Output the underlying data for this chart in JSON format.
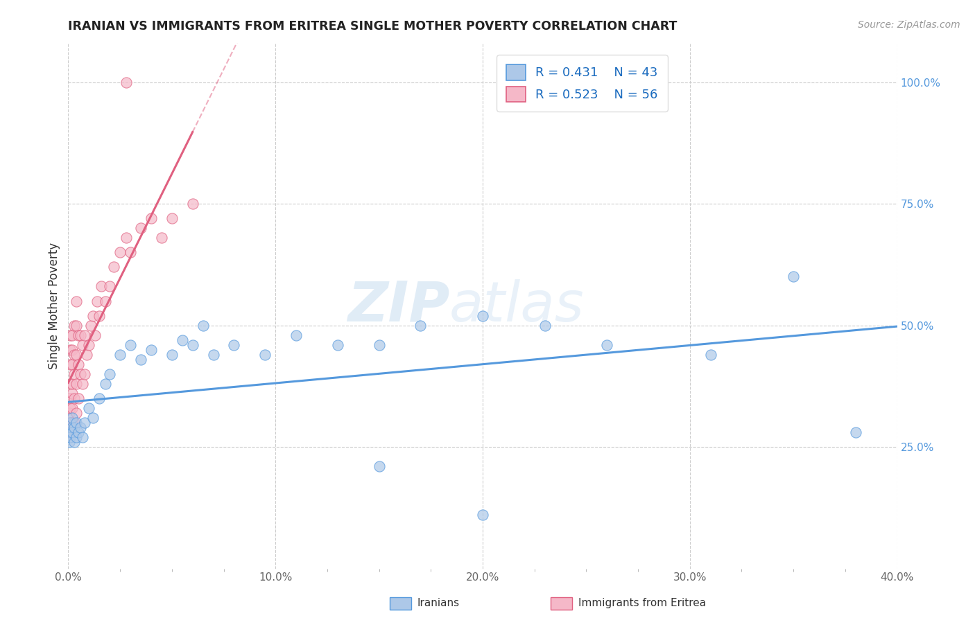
{
  "title": "IRANIAN VS IMMIGRANTS FROM ERITREA SINGLE MOTHER POVERTY CORRELATION CHART",
  "source": "Source: ZipAtlas.com",
  "xlabel_iranians": "Iranians",
  "xlabel_eritrea": "Immigrants from Eritrea",
  "ylabel": "Single Mother Poverty",
  "xlim": [
    0.0,
    0.4
  ],
  "ylim": [
    0.0,
    1.08
  ],
  "xticks": [
    0.0,
    0.1,
    0.2,
    0.3,
    0.4
  ],
  "xtick_labels": [
    "0.0%",
    "10.0%",
    "20.0%",
    "30.0%",
    "40.0%"
  ],
  "yticks": [
    0.25,
    0.5,
    0.75,
    1.0
  ],
  "ytick_labels": [
    "25.0%",
    "50.0%",
    "75.0%",
    "100.0%"
  ],
  "legend_r_iranian": "R = 0.431",
  "legend_n_iranian": "N = 43",
  "legend_r_eritrea": "R = 0.523",
  "legend_n_eritrea": "N = 56",
  "color_iranian": "#adc8e8",
  "color_eritrea": "#f5b8c8",
  "line_color_iranian": "#5599dd",
  "line_color_eritrea": "#e06080",
  "watermark_zip": "ZIP",
  "watermark_atlas": "atlas",
  "iranian_x": [
    0.0005,
    0.001,
    0.001,
    0.001,
    0.002,
    0.002,
    0.002,
    0.003,
    0.003,
    0.004,
    0.004,
    0.005,
    0.006,
    0.007,
    0.008,
    0.01,
    0.012,
    0.015,
    0.018,
    0.02,
    0.025,
    0.03,
    0.035,
    0.04,
    0.05,
    0.055,
    0.06,
    0.065,
    0.07,
    0.08,
    0.095,
    0.11,
    0.13,
    0.15,
    0.17,
    0.2,
    0.23,
    0.26,
    0.31,
    0.35,
    0.2,
    0.15,
    0.38
  ],
  "iranian_y": [
    0.26,
    0.28,
    0.3,
    0.27,
    0.29,
    0.28,
    0.31,
    0.26,
    0.29,
    0.27,
    0.3,
    0.28,
    0.29,
    0.27,
    0.3,
    0.33,
    0.31,
    0.35,
    0.38,
    0.4,
    0.44,
    0.46,
    0.43,
    0.45,
    0.44,
    0.47,
    0.46,
    0.5,
    0.44,
    0.46,
    0.44,
    0.48,
    0.46,
    0.46,
    0.5,
    0.52,
    0.5,
    0.46,
    0.44,
    0.6,
    0.11,
    0.21,
    0.28
  ],
  "eritrea_x": [
    0.0005,
    0.0005,
    0.001,
    0.001,
    0.001,
    0.001,
    0.001,
    0.001,
    0.001,
    0.001,
    0.002,
    0.002,
    0.002,
    0.002,
    0.002,
    0.002,
    0.002,
    0.003,
    0.003,
    0.003,
    0.003,
    0.003,
    0.004,
    0.004,
    0.004,
    0.004,
    0.004,
    0.005,
    0.005,
    0.005,
    0.006,
    0.006,
    0.007,
    0.007,
    0.008,
    0.008,
    0.009,
    0.01,
    0.011,
    0.012,
    0.013,
    0.014,
    0.015,
    0.016,
    0.018,
    0.02,
    0.022,
    0.025,
    0.028,
    0.03,
    0.035,
    0.04,
    0.045,
    0.05,
    0.06,
    0.028
  ],
  "eritrea_y": [
    0.28,
    0.32,
    0.28,
    0.3,
    0.33,
    0.35,
    0.38,
    0.42,
    0.45,
    0.48,
    0.3,
    0.33,
    0.36,
    0.38,
    0.42,
    0.45,
    0.48,
    0.3,
    0.35,
    0.4,
    0.44,
    0.5,
    0.32,
    0.38,
    0.44,
    0.5,
    0.55,
    0.35,
    0.42,
    0.48,
    0.4,
    0.48,
    0.38,
    0.46,
    0.4,
    0.48,
    0.44,
    0.46,
    0.5,
    0.52,
    0.48,
    0.55,
    0.52,
    0.58,
    0.55,
    0.58,
    0.62,
    0.65,
    0.68,
    0.65,
    0.7,
    0.72,
    0.68,
    0.72,
    0.75,
    1.0
  ]
}
